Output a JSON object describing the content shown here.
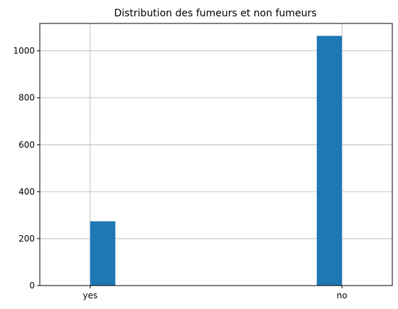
{
  "chart_data": {
    "type": "bar",
    "title": "Distribution des fumeurs et non fumeurs",
    "xlabel": "",
    "ylabel": "",
    "categories": [
      "yes",
      "no"
    ],
    "values": [
      274,
      1064
    ],
    "ylim": [
      0,
      1117
    ],
    "yticks": [
      0,
      200,
      400,
      600,
      800,
      1000
    ],
    "grid": true,
    "bar_color": "#1f77b4",
    "grid_color": "#b0b0b0"
  }
}
